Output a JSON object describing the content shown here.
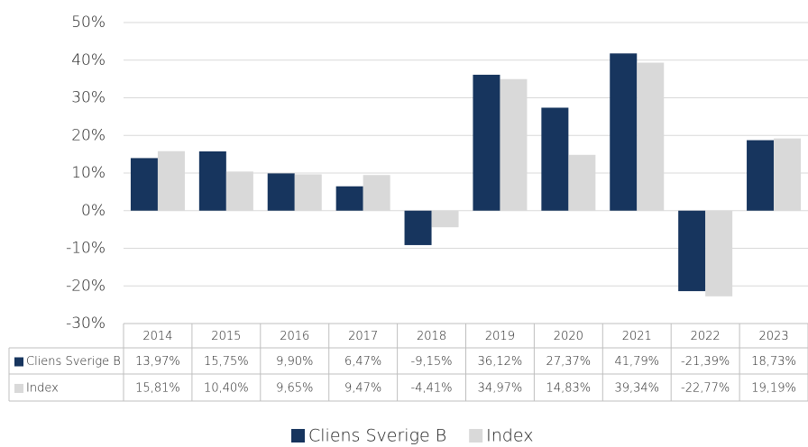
{
  "chart_data": {
    "type": "bar",
    "categories": [
      "2014",
      "2015",
      "2016",
      "2017",
      "2018",
      "2019",
      "2020",
      "2021",
      "2022",
      "2023"
    ],
    "series": [
      {
        "name": "Cliens Sverige B",
        "color": "#17355e",
        "values": [
          13.97,
          15.75,
          9.9,
          6.47,
          -9.15,
          36.12,
          27.37,
          41.79,
          -21.39,
          18.73
        ],
        "value_labels": [
          "13,97%",
          "15,75%",
          "9,90%",
          "6,47%",
          "-9,15%",
          "36,12%",
          "27,37%",
          "41,79%",
          "-21,39%",
          "18,73%"
        ]
      },
      {
        "name": "Index",
        "color": "#d9d9d9",
        "values": [
          15.81,
          10.4,
          9.65,
          9.47,
          -4.41,
          34.97,
          14.83,
          39.34,
          -22.77,
          19.19
        ],
        "value_labels": [
          "15,81%",
          "10,40%",
          "9,65%",
          "9,47%",
          "-4,41%",
          "34,97%",
          "14,83%",
          "39,34%",
          "-22,77%",
          "19,19%"
        ]
      }
    ],
    "ylim": [
      -30,
      50
    ],
    "yticks": [
      {
        "value": -30,
        "label": "-30%"
      },
      {
        "value": -20,
        "label": "-20%"
      },
      {
        "value": -10,
        "label": "-10%"
      },
      {
        "value": 0,
        "label": "0%"
      },
      {
        "value": 10,
        "label": "10%"
      },
      {
        "value": 20,
        "label": "20%"
      },
      {
        "value": 30,
        "label": "30%"
      },
      {
        "value": 40,
        "label": "40%"
      },
      {
        "value": 50,
        "label": "50%"
      }
    ],
    "grid": true,
    "legend": "bottom"
  }
}
